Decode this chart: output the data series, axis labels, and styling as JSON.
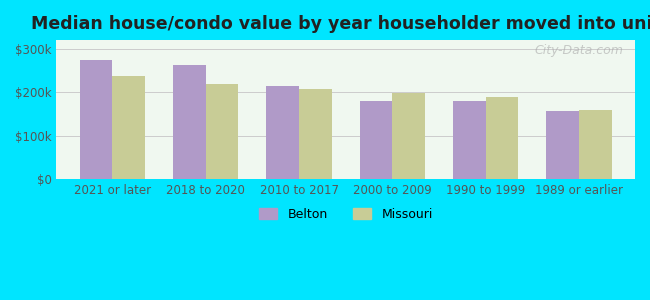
{
  "title": "Median house/condo value by year householder moved into unit",
  "categories": [
    "2021 or later",
    "2018 to 2020",
    "2010 to 2017",
    "2000 to 2009",
    "1990 to 1999",
    "1989 or earlier"
  ],
  "belton_values": [
    275000,
    263000,
    215000,
    180000,
    180000,
    158000
  ],
  "missouri_values": [
    237000,
    220000,
    207000,
    199000,
    190000,
    160000
  ],
  "belton_color": "#b09ac8",
  "missouri_color": "#c8cc96",
  "background_outer": "#00e5ff",
  "background_inner_top": "#f0f8f0",
  "background_inner_bottom": "#e8f4e8",
  "ylabel_ticks": [
    0,
    100000,
    200000,
    300000
  ],
  "ylabel_labels": [
    "$0",
    "$100k",
    "$200k",
    "$300k"
  ],
  "ylim": [
    0,
    320000
  ],
  "bar_width": 0.35,
  "legend_labels": [
    "Belton",
    "Missouri"
  ],
  "watermark": "City-Data.com"
}
